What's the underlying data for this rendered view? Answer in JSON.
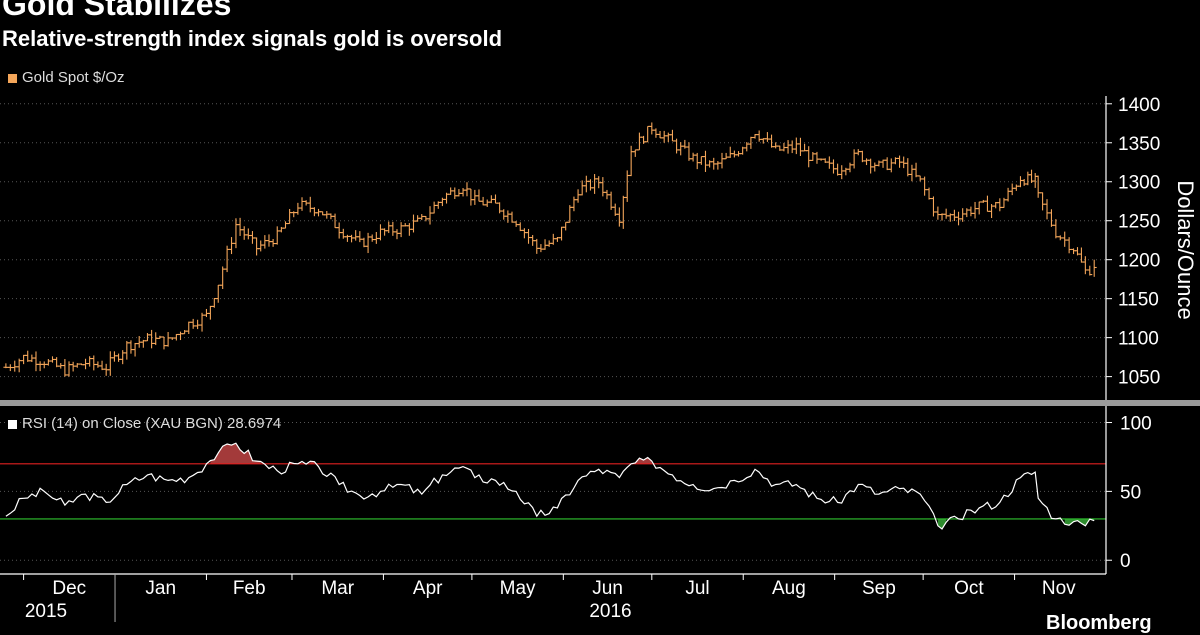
{
  "header": {
    "title": "Gold Stabilizes",
    "subtitle": "Relative-strength index signals gold is oversold"
  },
  "footer": {
    "brand": "Bloomberg"
  },
  "colors": {
    "price": "#f4a65a",
    "rsi": "#ffffff",
    "overbought_line": "#e02020",
    "oversold_line": "#2fc42f",
    "overbought_fill": "#a33a3a",
    "oversold_fill": "#2e8b2e",
    "grid": "#555555",
    "background": "#000000"
  },
  "chart_data": [
    {
      "type": "line",
      "style": "ohlc-bars",
      "legend": "Gold Spot $/Oz",
      "ylabel": "Dollars/Ounce",
      "ylim": [
        1020,
        1410
      ],
      "yticks": [
        1050,
        1100,
        1150,
        1200,
        1250,
        1300,
        1350,
        1400
      ],
      "grid": true,
      "x": [
        "2015-11-25",
        "2015-12-01",
        "2015-12-08",
        "2015-12-15",
        "2015-12-22",
        "2015-12-29",
        "2016-01-05",
        "2016-01-12",
        "2016-01-19",
        "2016-01-26",
        "2016-02-01",
        "2016-02-05",
        "2016-02-11",
        "2016-02-18",
        "2016-02-25",
        "2016-03-03",
        "2016-03-10",
        "2016-03-17",
        "2016-03-24",
        "2016-03-31",
        "2016-04-07",
        "2016-04-14",
        "2016-04-21",
        "2016-04-28",
        "2016-05-02",
        "2016-05-09",
        "2016-05-16",
        "2016-05-23",
        "2016-05-30",
        "2016-06-06",
        "2016-06-13",
        "2016-06-20",
        "2016-06-24",
        "2016-07-01",
        "2016-07-08",
        "2016-07-15",
        "2016-07-22",
        "2016-07-29",
        "2016-08-05",
        "2016-08-12",
        "2016-08-19",
        "2016-08-26",
        "2016-09-02",
        "2016-09-09",
        "2016-09-16",
        "2016-09-23",
        "2016-09-30",
        "2016-10-06",
        "2016-10-13",
        "2016-10-20",
        "2016-10-27",
        "2016-11-03",
        "2016-11-08",
        "2016-11-09",
        "2016-11-15",
        "2016-11-21",
        "2016-11-25",
        "2016-11-28"
      ],
      "values": [
        1062,
        1075,
        1070,
        1058,
        1068,
        1062,
        1090,
        1098,
        1095,
        1118,
        1128,
        1170,
        1245,
        1215,
        1230,
        1270,
        1265,
        1240,
        1220,
        1235,
        1240,
        1250,
        1280,
        1295,
        1275,
        1270,
        1250,
        1215,
        1225,
        1290,
        1300,
        1255,
        1340,
        1370,
        1350,
        1330,
        1320,
        1335,
        1365,
        1340,
        1345,
        1325,
        1315,
        1335,
        1320,
        1325,
        1300,
        1255,
        1258,
        1268,
        1270,
        1305,
        1300,
        1280,
        1235,
        1215,
        1185,
        1190
      ],
      "overall_range": {
        "min": 1050,
        "max": 1375
      }
    },
    {
      "type": "line",
      "legend": "RSI (14) on Close (XAU BGN) 28.6974",
      "ylim": [
        -10,
        112
      ],
      "yticks": [
        0,
        50,
        100
      ],
      "grid": true,
      "overbought": 70,
      "oversold": 30,
      "last_value": 28.6974,
      "x": [
        "2015-11-25",
        "2015-12-01",
        "2015-12-08",
        "2015-12-15",
        "2015-12-22",
        "2015-12-29",
        "2016-01-05",
        "2016-01-12",
        "2016-01-19",
        "2016-01-26",
        "2016-02-01",
        "2016-02-05",
        "2016-02-11",
        "2016-02-18",
        "2016-02-25",
        "2016-03-03",
        "2016-03-10",
        "2016-03-17",
        "2016-03-24",
        "2016-03-31",
        "2016-04-07",
        "2016-04-14",
        "2016-04-21",
        "2016-04-28",
        "2016-05-02",
        "2016-05-09",
        "2016-05-16",
        "2016-05-23",
        "2016-05-30",
        "2016-06-06",
        "2016-06-13",
        "2016-06-20",
        "2016-06-24",
        "2016-07-01",
        "2016-07-08",
        "2016-07-15",
        "2016-07-22",
        "2016-07-29",
        "2016-08-05",
        "2016-08-12",
        "2016-08-19",
        "2016-08-26",
        "2016-09-02",
        "2016-09-09",
        "2016-09-16",
        "2016-09-23",
        "2016-09-30",
        "2016-10-06",
        "2016-10-13",
        "2016-10-20",
        "2016-10-27",
        "2016-11-03",
        "2016-11-08",
        "2016-11-09",
        "2016-11-15",
        "2016-11-21",
        "2016-11-25",
        "2016-11-28"
      ],
      "values": [
        32,
        45,
        50,
        40,
        48,
        42,
        55,
        62,
        58,
        60,
        70,
        78,
        85,
        72,
        65,
        70,
        68,
        55,
        47,
        50,
        55,
        48,
        62,
        68,
        60,
        58,
        50,
        32,
        38,
        58,
        66,
        60,
        70,
        72,
        62,
        55,
        52,
        58,
        66,
        55,
        55,
        45,
        42,
        55,
        48,
        52,
        48,
        25,
        30,
        38,
        42,
        60,
        64,
        45,
        30,
        28,
        25,
        28.7
      ]
    }
  ],
  "x_axis": {
    "months": [
      "Dec",
      "Jan",
      "Feb",
      "Mar",
      "Apr",
      "May",
      "Jun",
      "Jul",
      "Aug",
      "Sep",
      "Oct",
      "Nov"
    ],
    "years": [
      "2015",
      "2016"
    ]
  }
}
